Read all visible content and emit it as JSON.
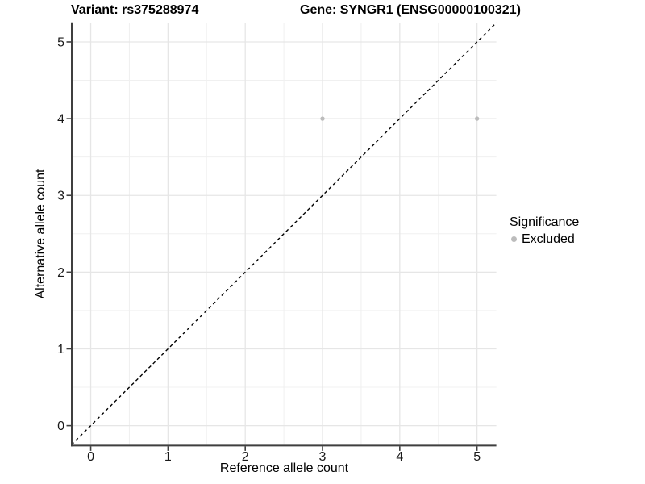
{
  "chart_data": {
    "type": "scatter",
    "title_left": "Variant: rs375288974",
    "title_right": "Gene: SYNGR1 (ENSG00000100321)",
    "xlabel": "Reference allele count",
    "ylabel": "Alternative allele count",
    "xlim": [
      -0.25,
      5.25
    ],
    "ylim": [
      -0.25,
      5.25
    ],
    "xticks": [
      0,
      1,
      2,
      3,
      4,
      5
    ],
    "yticks": [
      0,
      1,
      2,
      3,
      4,
      5
    ],
    "grid": "major and minor (0.5 steps), light gray on white panel",
    "reference_line": "dashed black identity line y = x across full panel",
    "series": [
      {
        "name": "Excluded",
        "color": "#bcbcbc",
        "points": [
          {
            "x": 3,
            "y": 4
          },
          {
            "x": 5,
            "y": 4
          }
        ]
      }
    ],
    "legend": {
      "title": "Significance",
      "position": "right-middle",
      "entries": [
        {
          "label": "Excluded",
          "color": "#bcbcbc"
        }
      ]
    }
  },
  "colors": {
    "background": "#ffffff",
    "grid_major": "#e6e6e6",
    "grid_minor": "#f0f0f0",
    "axis_line": "#3f3f3f",
    "tick_mark": "#3f3f3f",
    "tick_text": "#1a1a1a",
    "point": "#bcbcbc",
    "identity_line": "#000000"
  }
}
